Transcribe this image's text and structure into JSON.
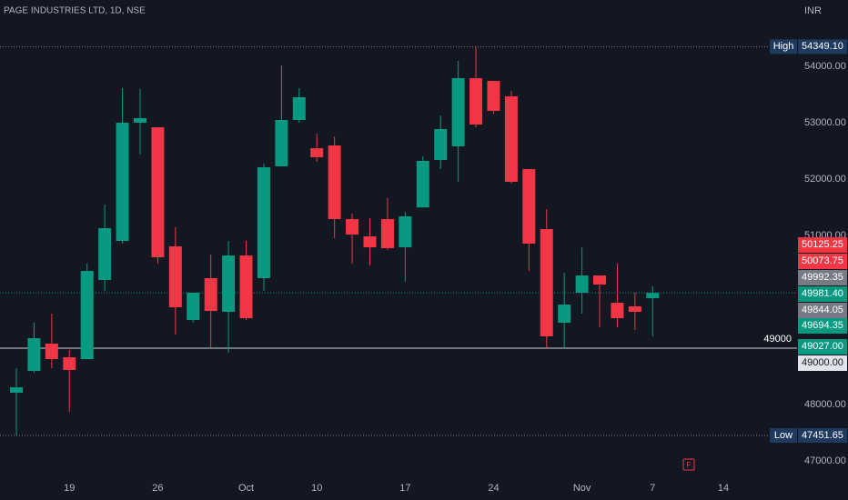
{
  "chart_data": {
    "type": "candlestick",
    "title": "PAGE INDUSTRIES LTD, 1D, NSE",
    "currency": "INR",
    "up_color": "#089981",
    "down_color": "#f23645",
    "categories": [
      null,
      null,
      null,
      "19",
      null,
      null,
      null,
      null,
      "26",
      null,
      null,
      null,
      null,
      "Oct",
      null,
      null,
      null,
      "10",
      null,
      null,
      null,
      null,
      "17",
      null,
      null,
      null,
      null,
      "24",
      null,
      null,
      null,
      null,
      "Nov",
      null,
      null,
      null,
      "7",
      null,
      null,
      null,
      "14"
    ],
    "open": [
      48210,
      48597,
      49081,
      48839,
      48806,
      50210,
      50903,
      53000,
      52919,
      50806,
      49500,
      50242,
      49645,
      50645,
      50242,
      52226,
      53048,
      52548,
      52597,
      51290,
      50984,
      51290,
      50790,
      51497,
      52339,
      52581,
      53790,
      53742,
      53468,
      52177,
      51113,
      49452,
      49984,
      50290,
      49806,
      49742,
      49887,
      null,
      null,
      null,
      null
    ],
    "high": [
      48645,
      49452,
      49613,
      48968,
      50500,
      51548,
      53613,
      53597,
      52919,
      51145,
      49984,
      50661,
      50903,
      50903,
      52274,
      54016,
      53613,
      52806,
      52758,
      51387,
      51306,
      51661,
      51419,
      52403,
      53129,
      54097,
      54349.1,
      53742,
      53565,
      52177,
      51468,
      50339,
      50790,
      50290,
      50500,
      49984,
      50097,
      null,
      null,
      null,
      null
    ],
    "low": [
      47451.65,
      48565,
      48645,
      47871,
      48806,
      50016,
      50855,
      52435,
      50500,
      49242,
      49452,
      49000,
      48919,
      49500,
      50016,
      52226,
      53000,
      52306,
      50952,
      50500,
      50468,
      50742,
      50177,
      51497,
      52177,
      51952,
      52919,
      53161,
      51919,
      50371,
      49000,
      49000,
      49613,
      49371,
      49371,
      49323,
      49210,
      null,
      null,
      null,
      null
    ],
    "close": [
      48306,
      49177,
      48806,
      48613,
      50371,
      51129,
      53000,
      53081,
      50613,
      49726,
      49984,
      49661,
      50645,
      49532,
      52210,
      53048,
      53452,
      52387,
      51290,
      51016,
      50790,
      50774,
      51339,
      52323,
      52887,
      53790,
      52968,
      53210,
      51952,
      50855,
      49210,
      49774,
      50290,
      50129,
      49532,
      49645,
      49981.4,
      null,
      null,
      null,
      null
    ],
    "ylim": [
      46710,
      55177
    ],
    "yticks": [
      {
        "value": 54000,
        "label": "54000.00"
      },
      {
        "value": 53000,
        "label": "53000.00"
      },
      {
        "value": 52000,
        "label": "52000.00"
      },
      {
        "value": 51000,
        "label": "51000.00"
      },
      {
        "value": 48000,
        "label": "48000.00"
      },
      {
        "value": 47000,
        "label": "47000.00"
      }
    ],
    "high_marker": {
      "text": "High",
      "value": 54349.1,
      "value_label": "54349.10"
    },
    "low_marker": {
      "text": "Low",
      "value": 47451.65
    },
    "horizontal_line": {
      "value": 49000
    },
    "price_labels": [
      {
        "value": 50125.25,
        "color": "#f23645"
      },
      {
        "value": 50073.75,
        "color": "#f23645"
      },
      {
        "value": 49992.35,
        "color": "#787b86"
      },
      {
        "value": 49981.4,
        "label": "49981.40",
        "color": "#089981"
      },
      {
        "value": 49844.05,
        "color": "#787b86"
      },
      {
        "value": 49694.35,
        "color": "#089981"
      },
      {
        "value": 49027,
        "label": "49027.00",
        "color": "#089981"
      },
      {
        "value": 49000,
        "label": "49000.00",
        "color": "#e0e3eb"
      }
    ],
    "event_marker": "F"
  }
}
